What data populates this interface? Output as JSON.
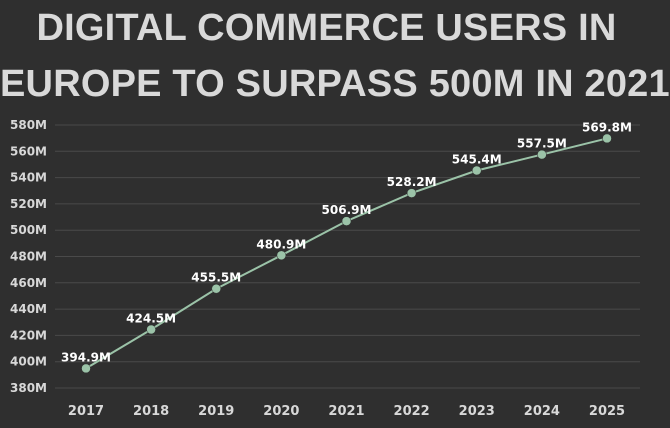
{
  "title": {
    "line1": "DIGITAL COMMERCE USERS IN",
    "line2": "EUROPE TO SURPASS 500M IN 2021"
  },
  "chart_data": {
    "type": "line",
    "title": "DIGITAL COMMERCE USERS IN EUROPE TO SURPASS 500M IN 2021",
    "x": [
      "2017",
      "2018",
      "2019",
      "2020",
      "2021",
      "2022",
      "2023",
      "2024",
      "2025"
    ],
    "values": [
      394.9,
      424.5,
      455.5,
      480.9,
      506.9,
      528.2,
      545.4,
      557.5,
      569.8
    ],
    "data_labels": [
      "394.9M",
      "424.5M",
      "455.5M",
      "480.9M",
      "506.9M",
      "528.2M",
      "545.4M",
      "557.5M",
      "569.8M"
    ],
    "yticks": [
      380,
      400,
      420,
      440,
      460,
      480,
      500,
      520,
      540,
      560,
      580
    ],
    "ytick_labels": [
      "380M",
      "400M",
      "420M",
      "440M",
      "460M",
      "480M",
      "500M",
      "520M",
      "540M",
      "560M",
      "580M"
    ],
    "ylim": [
      380,
      580
    ],
    "xlabel": "",
    "ylabel": "",
    "grid": true,
    "colors": {
      "background": "#2f2f2f",
      "line": "#9bc3a8",
      "marker": "#9bc3a8",
      "grid": "#4a4a4a",
      "text": "#d8d8d8",
      "data_label": "#ffffff"
    }
  }
}
